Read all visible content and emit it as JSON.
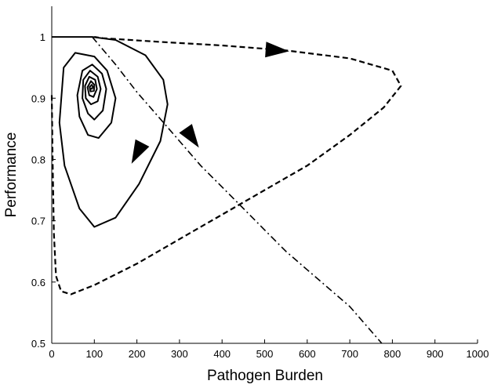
{
  "chart_data": {
    "type": "line",
    "xlabel": "Pathogen Burden",
    "ylabel": "Performance",
    "xlim": [
      0,
      1000
    ],
    "ylim": [
      0.5,
      1.05
    ],
    "x_ticks": [
      0,
      100,
      200,
      300,
      400,
      500,
      600,
      700,
      800,
      900,
      1000
    ],
    "y_ticks": [
      0.5,
      0.6,
      0.7,
      0.8,
      0.9,
      1.0
    ],
    "y_tick_labels": [
      "0.5",
      "0.6",
      "0.7",
      "0.8",
      "0.9",
      "1"
    ],
    "x_tick_labels": [
      "0",
      "100",
      "200",
      "300",
      "400",
      "500",
      "600",
      "700",
      "800",
      "900",
      "1000"
    ],
    "grid": false,
    "series": [
      {
        "style": "solid",
        "points": [
          [
            0,
            1.0
          ],
          [
            95,
            1.0
          ],
          [
            150,
            0.995
          ],
          [
            220,
            0.97
          ],
          [
            262,
            0.93
          ],
          [
            272,
            0.89
          ],
          [
            255,
            0.83
          ],
          [
            205,
            0.76
          ],
          [
            150,
            0.705
          ],
          [
            100,
            0.69
          ],
          [
            65,
            0.72
          ],
          [
            30,
            0.79
          ],
          [
            18,
            0.86
          ],
          [
            28,
            0.95
          ],
          [
            55,
            0.974
          ],
          [
            100,
            0.968
          ],
          [
            130,
            0.945
          ],
          [
            150,
            0.9
          ],
          [
            140,
            0.86
          ],
          [
            110,
            0.835
          ],
          [
            85,
            0.84
          ],
          [
            65,
            0.87
          ],
          [
            60,
            0.905
          ],
          [
            72,
            0.945
          ],
          [
            95,
            0.955
          ],
          [
            118,
            0.94
          ],
          [
            128,
            0.915
          ],
          [
            120,
            0.88
          ],
          [
            100,
            0.865
          ],
          [
            85,
            0.875
          ],
          [
            72,
            0.9
          ],
          [
            74,
            0.93
          ],
          [
            90,
            0.945
          ],
          [
            108,
            0.935
          ],
          [
            115,
            0.915
          ],
          [
            108,
            0.895
          ],
          [
            92,
            0.89
          ],
          [
            80,
            0.9
          ],
          [
            78,
            0.92
          ],
          [
            88,
            0.935
          ],
          [
            102,
            0.93
          ],
          [
            106,
            0.915
          ],
          [
            98,
            0.902
          ],
          [
            88,
            0.905
          ],
          [
            84,
            0.918
          ],
          [
            92,
            0.928
          ],
          [
            100,
            0.922
          ],
          [
            99,
            0.912
          ],
          [
            91,
            0.911
          ],
          [
            89,
            0.918
          ],
          [
            94,
            0.922
          ],
          [
            97,
            0.918
          ],
          [
            94,
            0.915
          ],
          [
            92,
            0.917
          ]
        ],
        "arrows": [
          {
            "at": [
              200,
              0.81
            ],
            "toward": [
              185,
              0.79
            ]
          }
        ]
      },
      {
        "style": "dash",
        "points": [
          [
            0,
            0.905
          ],
          [
            2,
            0.8
          ],
          [
            5,
            0.68
          ],
          [
            10,
            0.61
          ],
          [
            22,
            0.585
          ],
          [
            45,
            0.58
          ],
          [
            100,
            0.595
          ],
          [
            200,
            0.63
          ],
          [
            300,
            0.67
          ],
          [
            400,
            0.71
          ],
          [
            500,
            0.75
          ],
          [
            600,
            0.79
          ],
          [
            700,
            0.84
          ],
          [
            780,
            0.885
          ],
          [
            820,
            0.92
          ],
          [
            800,
            0.945
          ],
          [
            700,
            0.965
          ],
          [
            550,
            0.978
          ],
          [
            400,
            0.986
          ],
          [
            250,
            0.992
          ],
          [
            120,
            0.998
          ],
          [
            100,
            1.0
          ]
        ],
        "arrows": [
          {
            "at": [
              530,
              0.978
            ],
            "toward": [
              570,
              0.976
            ]
          }
        ]
      },
      {
        "style": "dashdot",
        "points": [
          [
            95,
            1.0
          ],
          [
            150,
            0.955
          ],
          [
            200,
            0.91
          ],
          [
            250,
            0.87
          ],
          [
            300,
            0.83
          ],
          [
            350,
            0.79
          ],
          [
            400,
            0.755
          ],
          [
            450,
            0.72
          ],
          [
            500,
            0.685
          ],
          [
            550,
            0.65
          ],
          [
            600,
            0.62
          ],
          [
            650,
            0.59
          ],
          [
            700,
            0.56
          ],
          [
            750,
            0.52
          ],
          [
            775,
            0.5
          ]
        ],
        "arrows": [
          {
            "at": [
              330,
              0.835
            ],
            "toward": [
              355,
              0.81
            ]
          }
        ]
      }
    ]
  }
}
